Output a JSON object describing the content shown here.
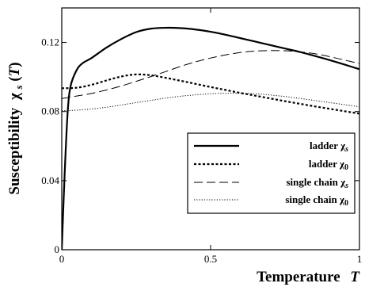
{
  "chart_data": {
    "type": "line",
    "title": "",
    "xlabel": {
      "text": "Temperature",
      "var": "T"
    },
    "ylabel": {
      "text": "Susceptibility",
      "sym": "χ",
      "sub": "s",
      "arg": "(",
      "var": "T",
      "argclose": ")"
    },
    "xlim": [
      0,
      1
    ],
    "ylim": [
      0,
      0.14
    ],
    "xticks": [
      {
        "v": 0,
        "label": "0"
      },
      {
        "v": 0.5,
        "label": "0.5"
      },
      {
        "v": 1,
        "label": "1"
      }
    ],
    "yticks": [
      {
        "v": 0,
        "label": "0"
      },
      {
        "v": 0.04,
        "label": "0.04"
      },
      {
        "v": 0.08,
        "label": "0.08"
      },
      {
        "v": 0.12,
        "label": "0.12"
      }
    ],
    "grid": false,
    "legend_position": "lower-right",
    "series": [
      {
        "name": "ladder χ_s",
        "legend": {
          "text": "ladder χ",
          "sub": "s"
        },
        "style": "solid",
        "width": 2.2,
        "dash": "",
        "x": [
          0,
          0.01,
          0.02,
          0.03,
          0.05,
          0.07,
          0.1,
          0.15,
          0.2,
          0.25,
          0.3,
          0.35,
          0.4,
          0.45,
          0.5,
          0.55,
          0.6,
          0.65,
          0.7,
          0.75,
          0.8,
          0.85,
          0.9,
          0.95,
          1.0
        ],
        "y": [
          0,
          0.045,
          0.08,
          0.095,
          0.104,
          0.108,
          0.111,
          0.117,
          0.122,
          0.126,
          0.128,
          0.1285,
          0.1283,
          0.1275,
          0.1262,
          0.1245,
          0.1225,
          0.1205,
          0.1185,
          0.1165,
          0.1145,
          0.1122,
          0.1098,
          0.1072,
          0.1045
        ]
      },
      {
        "name": "ladder χ_0",
        "legend": {
          "text": "ladder χ",
          "sub": "0"
        },
        "style": "dotted-bold",
        "width": 2.2,
        "dash": "3,2.5",
        "x": [
          0,
          0.05,
          0.1,
          0.15,
          0.2,
          0.25,
          0.3,
          0.35,
          0.4,
          0.45,
          0.5,
          0.55,
          0.6,
          0.65,
          0.7,
          0.75,
          0.8,
          0.85,
          0.9,
          0.95,
          1.0
        ],
        "y": [
          0.0935,
          0.0938,
          0.0955,
          0.098,
          0.1003,
          0.1015,
          0.101,
          0.0995,
          0.0978,
          0.096,
          0.0942,
          0.0925,
          0.0908,
          0.0892,
          0.0876,
          0.086,
          0.0845,
          0.083,
          0.0816,
          0.0802,
          0.0788
        ]
      },
      {
        "name": "single chain χ_s",
        "legend": {
          "text": "single chain χ",
          "sub": "s"
        },
        "style": "long-dash",
        "width": 1,
        "dash": "11,5",
        "x": [
          0,
          0.05,
          0.1,
          0.15,
          0.2,
          0.25,
          0.3,
          0.35,
          0.4,
          0.45,
          0.5,
          0.55,
          0.6,
          0.65,
          0.7,
          0.75,
          0.8,
          0.85,
          0.9,
          0.95,
          1.0
        ],
        "y": [
          0.0875,
          0.089,
          0.0905,
          0.0925,
          0.0948,
          0.0975,
          0.1003,
          0.1032,
          0.1062,
          0.1088,
          0.111,
          0.1128,
          0.1142,
          0.115,
          0.1153,
          0.1152,
          0.1146,
          0.1135,
          0.1118,
          0.1098,
          0.1078
        ]
      },
      {
        "name": "single chain χ_0",
        "legend": {
          "text": "single chain χ",
          "sub": "0"
        },
        "style": "dotted",
        "width": 1,
        "dash": "1.2,2",
        "x": [
          0,
          0.05,
          0.1,
          0.15,
          0.2,
          0.25,
          0.3,
          0.35,
          0.4,
          0.45,
          0.5,
          0.55,
          0.6,
          0.65,
          0.7,
          0.75,
          0.8,
          0.85,
          0.9,
          0.95,
          1.0
        ],
        "y": [
          0.0805,
          0.0808,
          0.0815,
          0.0825,
          0.0838,
          0.0852,
          0.0865,
          0.0878,
          0.0889,
          0.0897,
          0.0903,
          0.0906,
          0.0906,
          0.0903,
          0.0896,
          0.0887,
          0.0876,
          0.0864,
          0.0852,
          0.084,
          0.0828
        ]
      }
    ]
  }
}
